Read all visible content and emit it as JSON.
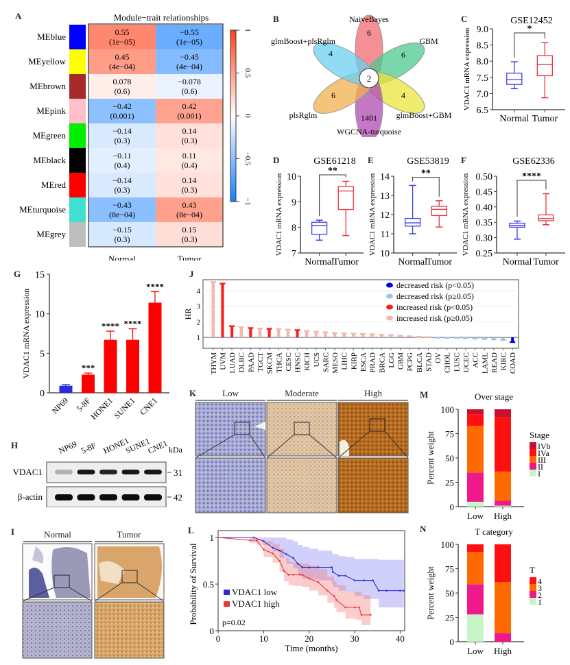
{
  "figure": {
    "panel_labels": [
      "A",
      "B",
      "C",
      "D",
      "E",
      "F",
      "G",
      "H",
      "I",
      "J",
      "K",
      "L",
      "M",
      "N"
    ]
  },
  "chart_data": [
    {
      "id": "A",
      "type": "heatmap",
      "title": "Module−trait relationships",
      "columns": [
        "Normal",
        "Tumor"
      ],
      "rows": [
        {
          "module": "MEblue",
          "color": "#0000ff",
          "normal": {
            "r": "0.55",
            "p": "(1e−05)"
          },
          "tumor": {
            "r": "−0.55",
            "p": "(1e−05)"
          },
          "value": 0.55
        },
        {
          "module": "MEyellow",
          "color": "#ffff00",
          "normal": {
            "r": "0.45",
            "p": "(4e−04)"
          },
          "tumor": {
            "r": "−0.45",
            "p": "(4e−04)"
          },
          "value": 0.45
        },
        {
          "module": "MEbrown",
          "color": "#a52a2a",
          "normal": {
            "r": "0.078",
            "p": "(0.6)"
          },
          "tumor": {
            "r": "−0.078",
            "p": "(0.6)"
          },
          "value": 0.078
        },
        {
          "module": "MEpink",
          "color": "#ffc0cb",
          "normal": {
            "r": "−0.42",
            "p": "(0.001)"
          },
          "tumor": {
            "r": "0.42",
            "p": "(0.001)"
          },
          "value": -0.42
        },
        {
          "module": "MEgreen",
          "color": "#00ee00",
          "normal": {
            "r": "−0.14",
            "p": "(0.3)"
          },
          "tumor": {
            "r": "0.14",
            "p": "(0.3)"
          },
          "value": -0.14
        },
        {
          "module": "MEblack",
          "color": "#000000",
          "normal": {
            "r": "−0.11",
            "p": "(0.4)"
          },
          "tumor": {
            "r": "0.11",
            "p": "(0.4)"
          },
          "value": -0.11
        },
        {
          "module": "MEred",
          "color": "#ff0000",
          "normal": {
            "r": "−0.14",
            "p": "(0.3)"
          },
          "tumor": {
            "r": "0.14",
            "p": "(0.3)"
          },
          "value": -0.14
        },
        {
          "module": "MEturquoise",
          "color": "#40e0d0",
          "normal": {
            "r": "−0.43",
            "p": "(8e−04)"
          },
          "tumor": {
            "r": "0.43",
            "p": "(8e−04)"
          },
          "value": -0.43
        },
        {
          "module": "MEgrey",
          "color": "#bebebe",
          "normal": {
            "r": "−0.15",
            "p": "(0.3)"
          },
          "tumor": {
            "r": "0.15",
            "p": "(0.3)"
          },
          "value": -0.15
        }
      ],
      "colorbar": {
        "range": [
          -1,
          1
        ],
        "ticks": [
          "1",
          "0.5",
          "0",
          "−0.5",
          "−1"
        ]
      }
    },
    {
      "id": "B",
      "type": "venn",
      "sets": [
        {
          "name": "NaiveBayes",
          "count": "6",
          "color": "#f06a6f"
        },
        {
          "name": "GBM",
          "count": "6",
          "color": "#4cc98f"
        },
        {
          "name": "glmBoost+GBM",
          "count": "4",
          "color": "#e9e43c"
        },
        {
          "name": "WGCNA-turquoise",
          "count": "1401",
          "color": "#b04ab0"
        },
        {
          "name": "plsRglm",
          "count": "6",
          "color": "#f0b04e"
        },
        {
          "name": "glmBoost+plsRglm",
          "count": "4",
          "color": "#6ad0f0"
        }
      ],
      "intersection": "2"
    },
    {
      "id": "C",
      "type": "box",
      "title": "GSE12452",
      "ylabel": "VDAC1 mRNA expression",
      "ylim": [
        6.5,
        9.0
      ],
      "yticks": [
        "6.5",
        "7.0",
        "7.5",
        "8.0",
        "8.5",
        "9.0"
      ],
      "sig": "*",
      "groups": [
        {
          "name": "Normal",
          "color": "#3b3bea",
          "min": 7.15,
          "q1": 7.28,
          "median": 7.43,
          "q3": 7.63,
          "max": 7.98
        },
        {
          "name": "Tumor",
          "color": "#e8353b",
          "min": 6.87,
          "q1": 7.55,
          "median": 7.9,
          "q3": 8.17,
          "max": 8.57
        }
      ]
    },
    {
      "id": "D",
      "type": "box",
      "title": "GSE61218",
      "ylabel": "VDAC1 mRNA expression",
      "ylim": [
        7,
        10
      ],
      "yticks": [
        "7",
        "8",
        "9",
        "10"
      ],
      "sig": "**",
      "groups": [
        {
          "name": "Normal",
          "color": "#3b3bea",
          "min": 7.5,
          "q1": 7.73,
          "median": 8.07,
          "q3": 8.2,
          "max": 8.28
        },
        {
          "name": "Tumor",
          "color": "#e8353b",
          "min": 7.68,
          "q1": 8.7,
          "median": 9.42,
          "q3": 9.6,
          "max": 9.8
        }
      ]
    },
    {
      "id": "E",
      "type": "box",
      "title": "GSE53819",
      "ylabel": "VDAC1 mRNA expression",
      "ylim": [
        10,
        14
      ],
      "yticks": [
        "10",
        "11",
        "12",
        "13",
        "14"
      ],
      "sig": "**",
      "groups": [
        {
          "name": "Normal",
          "color": "#3b3bea",
          "min": 11.0,
          "q1": 11.4,
          "median": 11.57,
          "q3": 11.8,
          "max": 13.52
        },
        {
          "name": "Tumor",
          "color": "#e8353b",
          "min": 11.35,
          "q1": 11.95,
          "median": 12.27,
          "q3": 12.43,
          "max": 12.72
        }
      ]
    },
    {
      "id": "F",
      "type": "box",
      "title": "GSE62336",
      "ylabel": "VDAC1 mRNA expression",
      "ylim": [
        0.25,
        0.5
      ],
      "yticks": [
        "0.25",
        "0.30",
        "0.35",
        "0.40",
        "0.45",
        "0.50"
      ],
      "sig": "****",
      "groups": [
        {
          "name": "Normal",
          "color": "#3b3bea",
          "min": 0.295,
          "q1": 0.334,
          "median": 0.34,
          "q3": 0.347,
          "max": 0.354
        },
        {
          "name": "Tumor",
          "color": "#e8353b",
          "min": 0.342,
          "q1": 0.355,
          "median": 0.362,
          "q3": 0.374,
          "max": 0.443
        }
      ]
    },
    {
      "id": "G",
      "type": "bar",
      "ylabel": "VDAC1 mRNA expression",
      "ylim": [
        0,
        15
      ],
      "yticks": [
        "0",
        "5",
        "10",
        "15"
      ],
      "categories": [
        "NP69",
        "5-8F",
        "HONE1",
        "SUNE1",
        "CNE1"
      ],
      "values": [
        0.9,
        2.3,
        6.7,
        6.7,
        11.4
      ],
      "errors": [
        0.15,
        0.2,
        1.1,
        1.4,
        1.4
      ],
      "colors": [
        "#2b2bd9",
        "#ff0000",
        "#ff0000",
        "#ff0000",
        "#ff0000"
      ],
      "sig": [
        "",
        "***",
        "****",
        "****",
        "****"
      ]
    },
    {
      "id": "J",
      "type": "bar",
      "ylabel": "HR",
      "ylim": [
        0.3,
        4.7
      ],
      "yticks": [
        "1",
        "2",
        "3",
        "4"
      ],
      "categories": [
        "THYM",
        "UVM",
        "LUAD",
        "DLBC",
        "PAAD",
        "TGCT",
        "SKCM",
        "THCA",
        "CESC",
        "HNSC",
        "KICH",
        "UCS",
        "SARC",
        "MESO",
        "LIHC",
        "KIRP",
        "ESCA",
        "PRAD",
        "BRCA",
        "LGG",
        "GBM",
        "PCPG",
        "BLCA",
        "STAD",
        "OV",
        "CHOL",
        "LUSC",
        "UCEC",
        "ACC",
        "LAML",
        "READ",
        "KIRC",
        "COAD"
      ],
      "values": [
        4.55,
        4.45,
        1.72,
        1.65,
        1.6,
        1.57,
        1.55,
        1.53,
        1.5,
        1.47,
        1.42,
        1.36,
        1.33,
        1.28,
        1.26,
        1.24,
        1.22,
        1.2,
        1.17,
        1.15,
        1.1,
        1.07,
        1.04,
        1.02,
        0.98,
        0.97,
        0.96,
        0.95,
        0.92,
        0.9,
        0.87,
        0.83,
        0.7
      ],
      "classes": [
        "inc_ns",
        "inc_sig",
        "inc_sig",
        "inc_ns",
        "inc_sig",
        "inc_ns",
        "inc_sig",
        "inc_ns",
        "inc_ns",
        "inc_sig",
        "inc_ns",
        "inc_ns",
        "inc_ns",
        "inc_ns",
        "inc_ns",
        "inc_ns",
        "inc_ns",
        "inc_ns",
        "inc_ns",
        "inc_ns",
        "inc_ns",
        "inc_ns",
        "inc_ns",
        "inc_ns",
        "dec_ns",
        "dec_ns",
        "dec_ns",
        "dec_ns",
        "dec_ns",
        "dec_ns",
        "dec_ns",
        "dec_ns",
        "dec_sig"
      ],
      "legend": [
        {
          "key": "dec_sig",
          "label": "decreased risk (p<0.05)",
          "color": "#0000ee"
        },
        {
          "key": "dec_ns",
          "label": "decreased risk (p≥0.05)",
          "color": "#9dc3e6"
        },
        {
          "key": "inc_sig",
          "label": "increased risk (p<0.05)",
          "color": "#ff1a1a"
        },
        {
          "key": "inc_ns",
          "label": "increased risk (p≥0.05)",
          "color": "#f2b8ad"
        }
      ],
      "legend_position": "top-right"
    },
    {
      "id": "L",
      "type": "line",
      "xlabel": "Time (months)",
      "ylabel": "Probability of Survival",
      "xlim": [
        0,
        41
      ],
      "ylim": [
        0,
        1
      ],
      "xticks": [
        "0",
        "10",
        "20",
        "30",
        "40"
      ],
      "yticks": [
        "0",
        "0.5",
        "1"
      ],
      "annotation": "p=0.02",
      "series": [
        {
          "name": "VDAC1 low",
          "color": "#2b2bd9",
          "band": "rgba(120,120,240,0.35)",
          "x": [
            0,
            7.8,
            10,
            12,
            13.5,
            15,
            16.5,
            17.5,
            18.5,
            20,
            22,
            25,
            25.2,
            26.5,
            28,
            30,
            32,
            34,
            35.3,
            37,
            40,
            40.8
          ],
          "y": [
            1,
            1,
            0.96,
            0.89,
            0.86,
            0.82,
            0.78,
            0.72,
            0.68,
            0.68,
            0.68,
            0.68,
            0.63,
            0.59,
            0.59,
            0.54,
            0.54,
            0.54,
            0.43,
            0.43,
            0.43,
            0.43
          ],
          "lo": [
            1,
            1,
            0.92,
            0.85,
            0.78,
            0.72,
            0.67,
            0.6,
            0.56,
            0.55,
            0.54,
            0.5,
            0.47,
            0.43,
            0.42,
            0.37,
            0.34,
            0.34,
            0.25,
            0.25,
            0.25,
            0.25
          ],
          "hi": [
            1,
            1,
            1,
            1,
            1,
            0.98,
            0.96,
            0.92,
            0.9,
            0.88,
            0.86,
            0.84,
            0.82,
            0.8,
            0.79,
            0.77,
            0.77,
            0.77,
            0.76,
            0.76,
            0.76,
            0.76
          ]
        },
        {
          "name": "VDAC1 high",
          "color": "#e8353b",
          "band": "rgba(240,110,110,0.35)",
          "x": [
            0,
            7,
            8.5,
            10,
            12,
            13.5,
            14.5,
            15.5,
            16.5,
            18,
            18.5,
            20,
            22,
            24,
            25.5,
            26,
            28,
            30,
            31,
            31.5,
            33.5
          ],
          "y": [
            1,
            0.97,
            0.97,
            0.87,
            0.83,
            0.75,
            0.64,
            0.6,
            0.6,
            0.6,
            0.6,
            0.56,
            0.52,
            0.43,
            0.37,
            0.33,
            0.25,
            0.25,
            0.25,
            0.17,
            0.17
          ],
          "lo": [
            1,
            0.94,
            0.92,
            0.79,
            0.73,
            0.63,
            0.53,
            0.49,
            0.48,
            0.48,
            0.47,
            0.43,
            0.38,
            0.3,
            0.24,
            0.2,
            0.13,
            0.12,
            0.11,
            0.06,
            0.06
          ],
          "hi": [
            1,
            1,
            1,
            0.96,
            0.93,
            0.88,
            0.78,
            0.74,
            0.73,
            0.73,
            0.72,
            0.7,
            0.66,
            0.58,
            0.53,
            0.49,
            0.42,
            0.42,
            0.42,
            0.38,
            0.46
          ]
        }
      ]
    },
    {
      "id": "M",
      "type": "bar",
      "stacked": true,
      "title": "Over stage",
      "ylabel": "Percent weight",
      "ylim": [
        0,
        100
      ],
      "yticks": [
        "0",
        "25",
        "50",
        "75",
        "100"
      ],
      "categories": [
        "Low",
        "High"
      ],
      "legend_title": "Stage",
      "series": [
        {
          "name": "I",
          "color": "#c8f5c8",
          "values": [
            5,
            1
          ]
        },
        {
          "name": "II",
          "color": "#f0198c",
          "values": [
            30,
            5
          ]
        },
        {
          "name": "III",
          "color": "#ff6a00",
          "values": [
            48,
            30
          ]
        },
        {
          "name": "IVa",
          "color": "#ff1010",
          "values": [
            12,
            56
          ]
        },
        {
          "name": "IVb",
          "color": "#c8102e",
          "values": [
            5,
            8
          ]
        }
      ]
    },
    {
      "id": "N",
      "type": "bar",
      "stacked": true,
      "title": "T category",
      "ylabel": "Percent weight",
      "ylim": [
        0,
        100
      ],
      "yticks": [
        "0",
        "25",
        "50",
        "75",
        "100"
      ],
      "categories": [
        "Low",
        "High"
      ],
      "legend_title": "T",
      "series": [
        {
          "name": "1",
          "color": "#c8f5c8",
          "values": [
            28,
            0
          ]
        },
        {
          "name": "2",
          "color": "#f0198c",
          "values": [
            31,
            9
          ]
        },
        {
          "name": "3",
          "color": "#ff6a00",
          "values": [
            33,
            52
          ]
        },
        {
          "name": "4",
          "color": "#ff1010",
          "values": [
            8,
            39
          ]
        }
      ]
    }
  ],
  "blot": {
    "lanes": [
      "NP69",
      "5-8F",
      "HONE1",
      "SUNE1",
      "CNE1"
    ],
    "unit": "kDa",
    "rows": [
      {
        "label": "VDAC1",
        "kda": "31",
        "intensity": [
          0.25,
          0.9,
          0.85,
          0.9,
          0.9
        ]
      },
      {
        "label": "β-actin",
        "kda": "42",
        "intensity": [
          0.95,
          0.95,
          0.95,
          0.95,
          0.95
        ]
      }
    ]
  },
  "ihc_I": {
    "columns": [
      "Normal",
      "Tumor"
    ]
  },
  "ihc_K": {
    "columns": [
      "Low",
      "Moderate",
      "High"
    ]
  }
}
